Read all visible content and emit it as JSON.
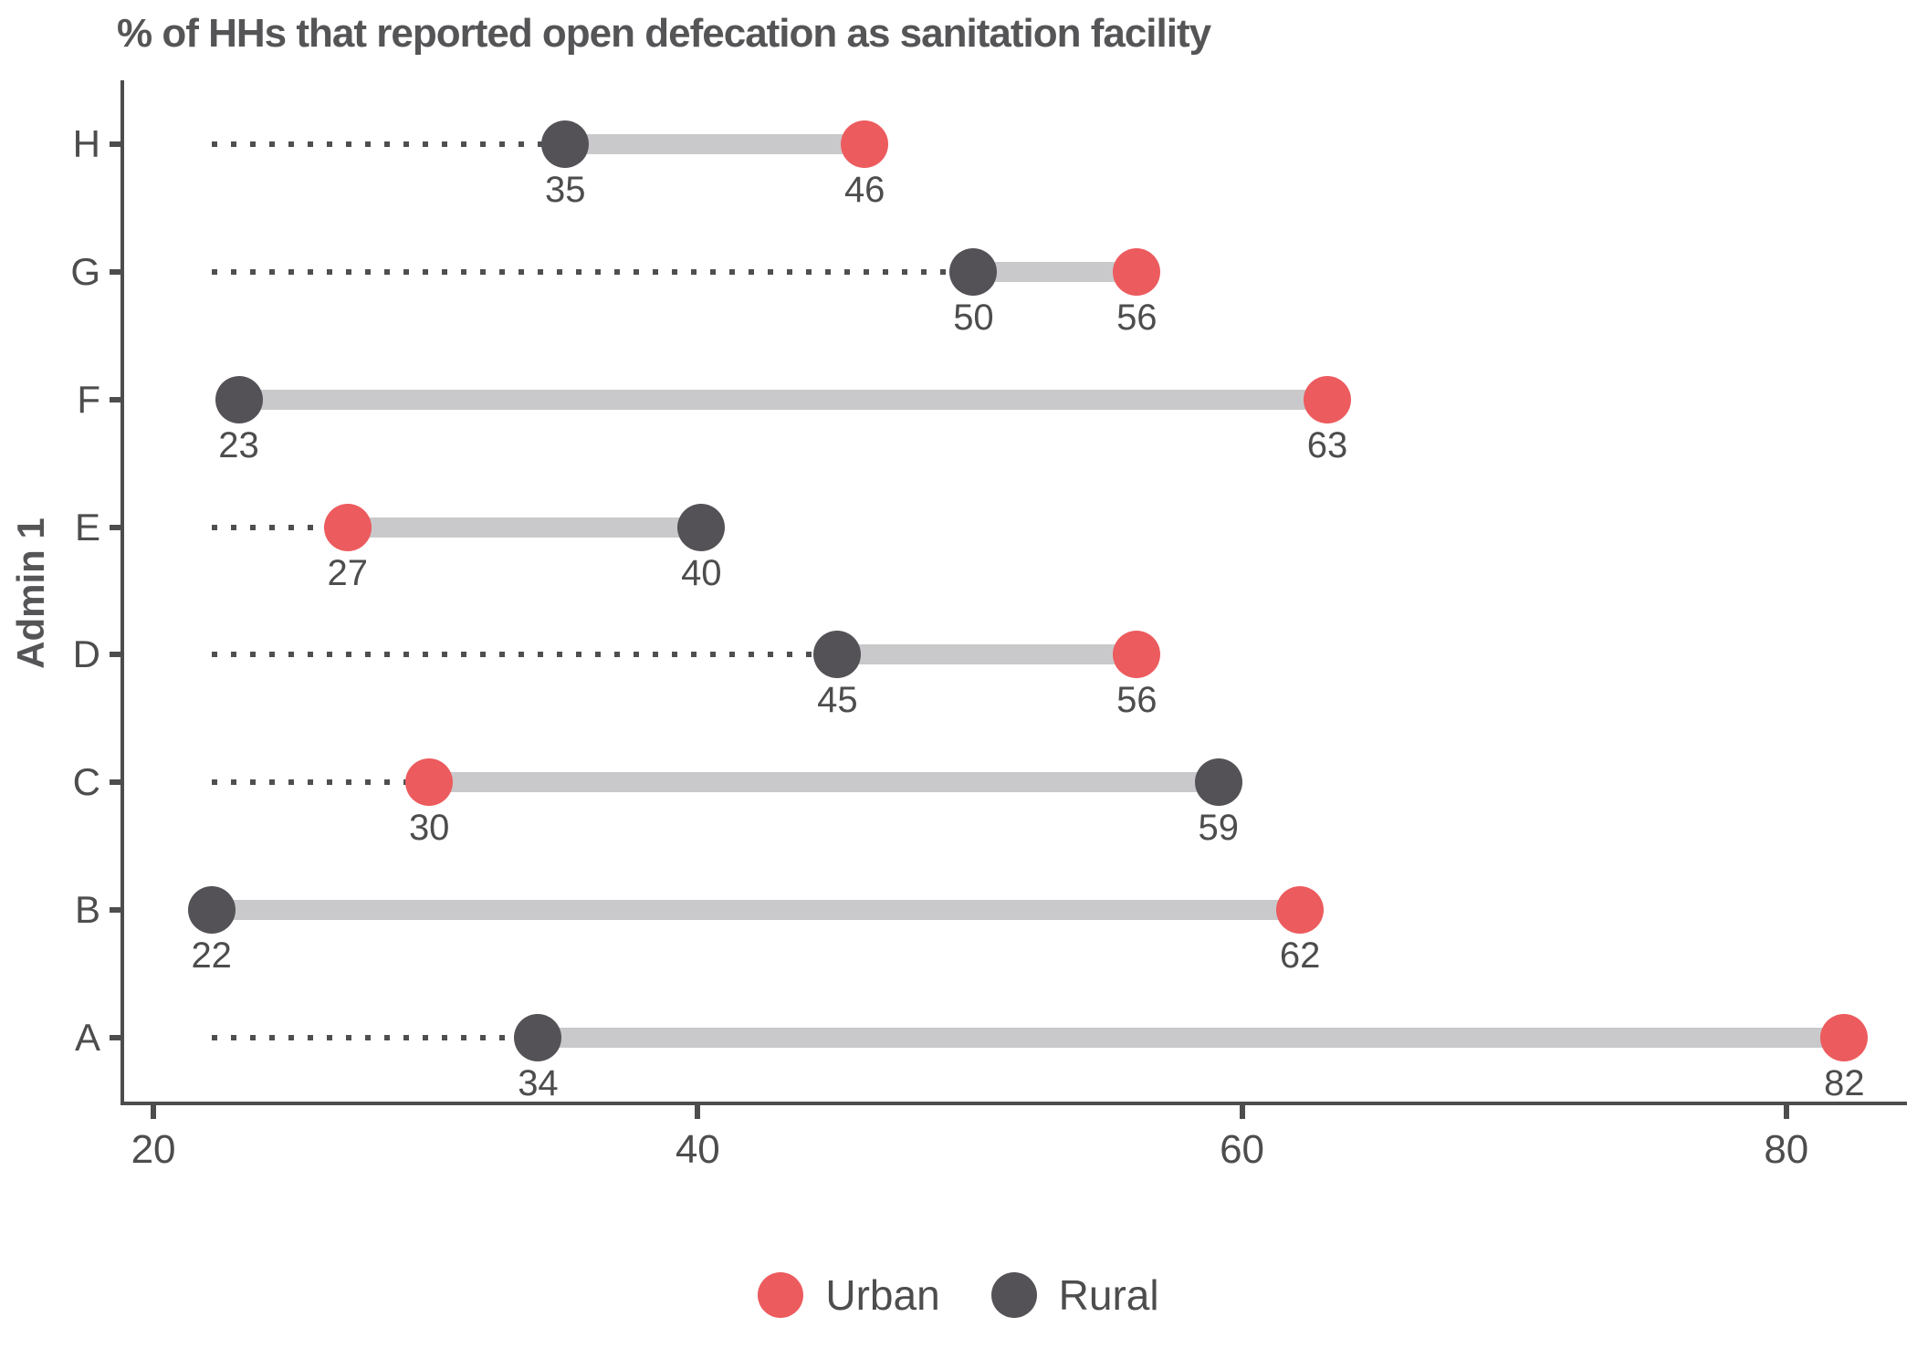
{
  "title": "% of HHs that reported open defecation as sanitation facility",
  "y_axis_title": "Admin 1",
  "legend": {
    "urban_label": "Urban",
    "rural_label": "Rural"
  },
  "colors": {
    "urban": "#EC5B5E",
    "rural": "#545256",
    "connector": "#C9C9CB",
    "dotted_line": "#4F4F51",
    "axis": "#4D4D4D",
    "text": "#4D4D4D"
  },
  "chart_data": {
    "type": "dumbbell",
    "orientation": "horizontal",
    "title": "% of HHs that reported open defecation as sanitation facility",
    "xlabel": "",
    "ylabel": "Admin 1",
    "categories_top_to_bottom": [
      "H",
      "G",
      "F",
      "E",
      "D",
      "C",
      "B",
      "A"
    ],
    "series": [
      {
        "name": "Urban",
        "color": "#EC5B5E",
        "values": [
          46,
          56,
          63,
          27,
          56,
          30,
          62,
          82
        ]
      },
      {
        "name": "Rural",
        "color": "#545256",
        "values": [
          35,
          50,
          23,
          40,
          45,
          59,
          22,
          34
        ]
      }
    ],
    "point_value_labels_shown": true,
    "x_ticks": [
      20,
      40,
      60,
      80
    ],
    "xlim": [
      18.79,
      84.3
    ],
    "dotted_baseline": 22,
    "grid": false,
    "legend_position": "bottom"
  }
}
